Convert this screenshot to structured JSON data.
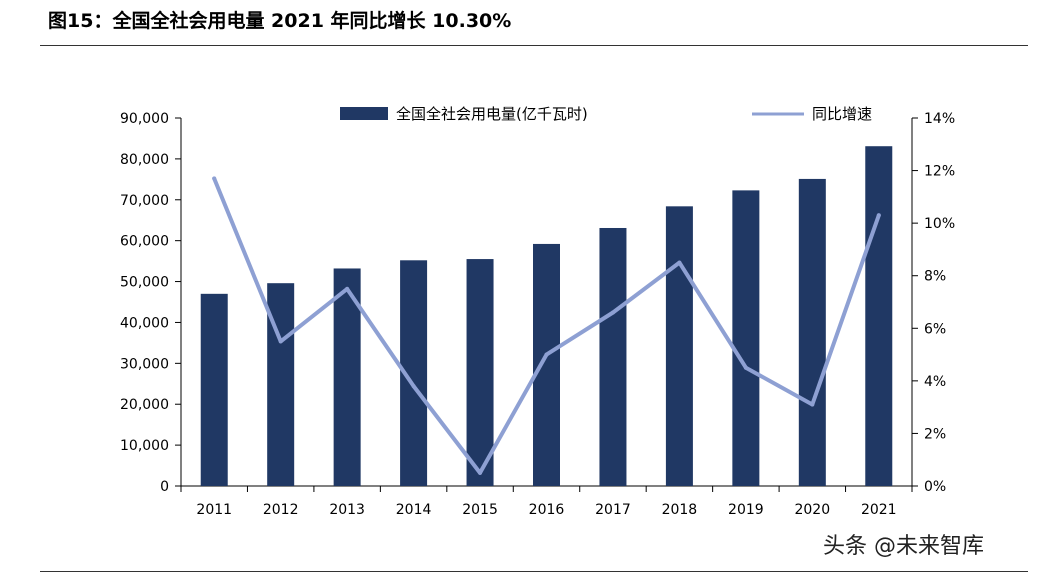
{
  "figure": {
    "title": "图15：全国全社会用电量 2021 年同比增长 10.30%",
    "watermark": "头条 @未来智库"
  },
  "chart_data": {
    "type": "bar",
    "categories": [
      "2011",
      "2012",
      "2013",
      "2014",
      "2015",
      "2016",
      "2017",
      "2018",
      "2019",
      "2020",
      "2021"
    ],
    "series": [
      {
        "name": "全国全社会用电量(亿千瓦时)",
        "type": "bar",
        "axis": "left",
        "color": "#203864",
        "values": [
          47000,
          49600,
          53200,
          55200,
          55500,
          59200,
          63100,
          68400,
          72300,
          75100,
          83100
        ]
      },
      {
        "name": "同比增速",
        "type": "line",
        "axis": "right",
        "color": "#8EA0D3",
        "values": [
          11.7,
          5.5,
          7.5,
          3.8,
          0.5,
          5.0,
          6.6,
          8.5,
          4.5,
          3.1,
          10.3
        ]
      }
    ],
    "y_left": {
      "range": [
        0,
        90000
      ],
      "ticks": [
        0,
        10000,
        20000,
        30000,
        40000,
        50000,
        60000,
        70000,
        80000,
        90000
      ],
      "tick_labels": [
        "0",
        "10,000",
        "20,000",
        "30,000",
        "40,000",
        "50,000",
        "60,000",
        "70,000",
        "80,000",
        "90,000"
      ]
    },
    "y_right": {
      "range": [
        0,
        14
      ],
      "ticks": [
        0,
        2,
        4,
        6,
        8,
        10,
        12,
        14
      ],
      "tick_labels": [
        "0%",
        "2%",
        "4%",
        "6%",
        "8%",
        "10%",
        "12%",
        "14%"
      ]
    },
    "grid": false,
    "legend_position": "top"
  }
}
